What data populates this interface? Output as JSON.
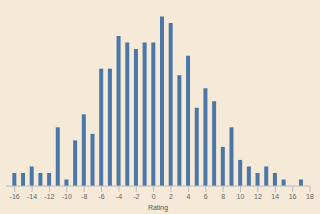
{
  "chart_data": {
    "type": "bar",
    "x_label": "Rating",
    "x": [
      -16,
      -15,
      -14,
      -13,
      -12,
      -11,
      -10,
      -9,
      -8,
      -7,
      -6,
      -5,
      -4,
      -3,
      -2,
      -1,
      0,
      1,
      2,
      3,
      4,
      5,
      6,
      7,
      8,
      9,
      10,
      11,
      12,
      13,
      14,
      15,
      16,
      17
    ],
    "values": [
      2,
      2,
      3,
      2,
      2,
      9,
      1,
      7,
      11,
      8,
      18,
      18,
      23,
      22,
      21,
      22,
      22,
      26,
      25,
      17,
      20,
      12,
      15,
      13,
      6,
      9,
      4,
      3,
      2,
      3,
      2,
      1,
      0,
      1
    ],
    "color": "#4a76a8",
    "xlim": [
      -17,
      18
    ],
    "xticks": [
      -16,
      -14,
      -12,
      -10,
      -8,
      -6,
      -4,
      -2,
      0,
      2,
      4,
      6,
      8,
      10,
      12,
      14,
      16,
      18
    ],
    "ylim": [
      0,
      27
    ],
    "grid": false,
    "tick_labels": "x"
  }
}
